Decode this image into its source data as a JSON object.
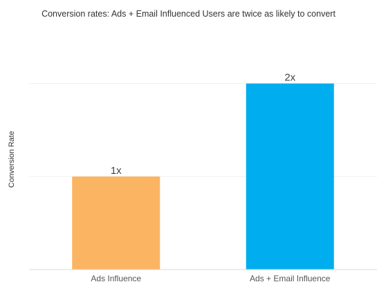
{
  "chart_data": {
    "type": "bar",
    "title": "Conversion rates: Ads + Email Influenced Users are twice as likely to convert",
    "ylabel": "Conversion Rate",
    "xlabel": "",
    "categories": [
      "Ads Influence",
      "Ads + Email Influence"
    ],
    "values": [
      1,
      2
    ],
    "data_labels": [
      "1x",
      "2x"
    ],
    "ylim": [
      0,
      2.6
    ],
    "grid": true,
    "colors": [
      "#FBB462",
      "#00AEEF"
    ]
  }
}
